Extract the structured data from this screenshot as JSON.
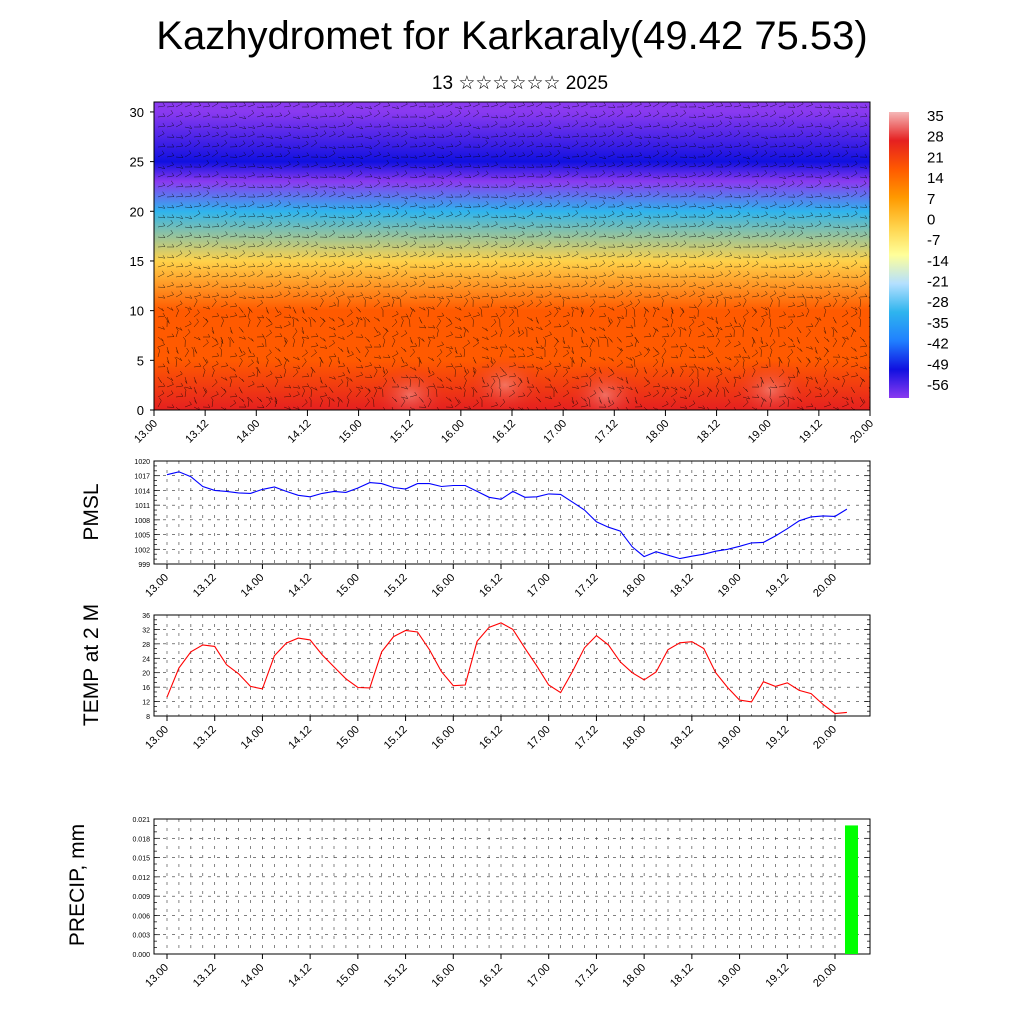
{
  "header": {
    "title": "Kazhydromet for Karkaraly(49.42 75.53)",
    "subtitle": "13 ☆☆☆☆☆☆ 2025"
  },
  "colors": {
    "pmsl_line": "#0000ff",
    "temp_line": "#ff0000",
    "precip_bar": "#00ff00",
    "colormap": [
      "#f5b8b8",
      "#e52020",
      "#ff5a00",
      "#ff9a00",
      "#ffd24a",
      "#ffff9a",
      "#b4e0ff",
      "#2eb4ee",
      "#2080ff",
      "#1010e0",
      "#8a3af0"
    ]
  },
  "chart_data": [
    {
      "type": "heatmap",
      "title": "",
      "xlabel": "",
      "ylabel": "",
      "ylim": [
        0,
        31
      ],
      "y_ticks": [
        "0",
        "5",
        "10",
        "15",
        "20",
        "25",
        "30"
      ],
      "x_ticks": [
        "13.00",
        "13.12",
        "14.00",
        "14.12",
        "15.00",
        "15.12",
        "16.00",
        "16.12",
        "17.00",
        "17.12",
        "18.00",
        "18.12",
        "19.00",
        "19.12",
        "20.00"
      ],
      "colorbar_labels": [
        "35",
        "28",
        "21",
        "14",
        "7",
        "0",
        "-7",
        "-14",
        "-21",
        "-28",
        "-35",
        "-42",
        "-49",
        "-56"
      ],
      "levels_temperature": [
        {
          "height": 0,
          "value": 24
        },
        {
          "height": 5,
          "value": 21
        },
        {
          "height": 10,
          "value": 13
        },
        {
          "height": 15,
          "value": -5
        },
        {
          "height": 20,
          "value": -30
        },
        {
          "height": 23,
          "value": -52
        },
        {
          "height": 25,
          "value": -48
        },
        {
          "height": 30,
          "value": -58
        }
      ],
      "overlay": "wind barbs",
      "grid": false
    },
    {
      "type": "line",
      "ylabel": "PMSL",
      "xlabel": "",
      "ylim": [
        999,
        1020
      ],
      "y_ticks": [
        "1020",
        "1017",
        "1014",
        "1011",
        "1008",
        "1005",
        "1002",
        "999"
      ],
      "x_ticks": [
        "13.00",
        "13.12",
        "14.00",
        "14.12",
        "15.00",
        "15.12",
        "16.00",
        "16.12",
        "17.00",
        "17.12",
        "18.00",
        "18.12",
        "19.00",
        "19.12",
        "20.00"
      ],
      "x_step_hours": 3,
      "series": [
        {
          "values": [
            1017.2,
            1017.8,
            1016.8,
            1014.8,
            1014.0,
            1013.8,
            1013.5,
            1013.4,
            1014.2,
            1014.7,
            1013.8,
            1013.0,
            1012.7,
            1013.4,
            1013.8,
            1013.6,
            1014.5,
            1015.6,
            1015.4,
            1014.6,
            1014.3,
            1015.4,
            1015.4,
            1014.8,
            1015.0,
            1015.0,
            1013.8,
            1012.6,
            1012.2,
            1013.8,
            1012.6,
            1012.7,
            1013.3,
            1013.2,
            1011.6,
            1010.0,
            1007.6,
            1006.5,
            1005.7,
            1002.5,
            1000.5,
            1001.5,
            1000.8,
            1000.1,
            1000.6,
            1001.0,
            1001.6,
            1002.0,
            1002.6,
            1003.3,
            1003.4,
            1004.7,
            1006.2,
            1007.8,
            1008.6,
            1008.8,
            1008.7,
            1010.2
          ]
        }
      ],
      "grid": true
    },
    {
      "type": "line",
      "ylabel": "TEMP at 2 M",
      "xlabel": "",
      "ylim": [
        8,
        36
      ],
      "y_ticks": [
        "36",
        "32",
        "28",
        "24",
        "20",
        "16",
        "12",
        "8"
      ],
      "x_ticks": [
        "13.00",
        "13.12",
        "14.00",
        "14.12",
        "15.00",
        "15.12",
        "16.00",
        "16.12",
        "17.00",
        "17.12",
        "18.00",
        "18.12",
        "19.00",
        "19.12",
        "20.00"
      ],
      "x_step_hours": 3,
      "series": [
        {
          "values": [
            13.2,
            21.3,
            25.8,
            27.7,
            27.3,
            22.2,
            19.7,
            16.2,
            15.5,
            24.7,
            28.2,
            29.6,
            29.1,
            25.0,
            21.6,
            18.3,
            15.9,
            15.8,
            25.8,
            30.0,
            31.7,
            31.3,
            26.4,
            20.3,
            16.4,
            16.6,
            28.7,
            32.6,
            33.8,
            32.0,
            26.8,
            21.9,
            16.6,
            14.5,
            20.4,
            26.9,
            30.3,
            27.7,
            23.0,
            20.0,
            18.0,
            20.2,
            26.4,
            28.3,
            28.6,
            26.7,
            20.0,
            15.9,
            12.4,
            11.9,
            17.5,
            16.2,
            17.2,
            15.1,
            14.2,
            11.2,
            8.7,
            9.0
          ]
        }
      ],
      "grid": true
    },
    {
      "type": "bar",
      "ylabel": "PRECIP, mm",
      "xlabel": "",
      "ylim": [
        0,
        0.021
      ],
      "y_ticks": [
        "0.021",
        "0.018",
        "0.015",
        "0.012",
        "0.009",
        "0.006",
        "0.003",
        "0.000"
      ],
      "x_ticks": [
        "13.00",
        "13.12",
        "14.00",
        "14.12",
        "15.00",
        "15.12",
        "16.00",
        "16.12",
        "17.00",
        "17.12",
        "18.00",
        "18.12",
        "19.00",
        "19.12",
        "20.00"
      ],
      "bars": [
        {
          "x_hours": 165,
          "value": 0.02
        }
      ],
      "grid": true
    }
  ]
}
